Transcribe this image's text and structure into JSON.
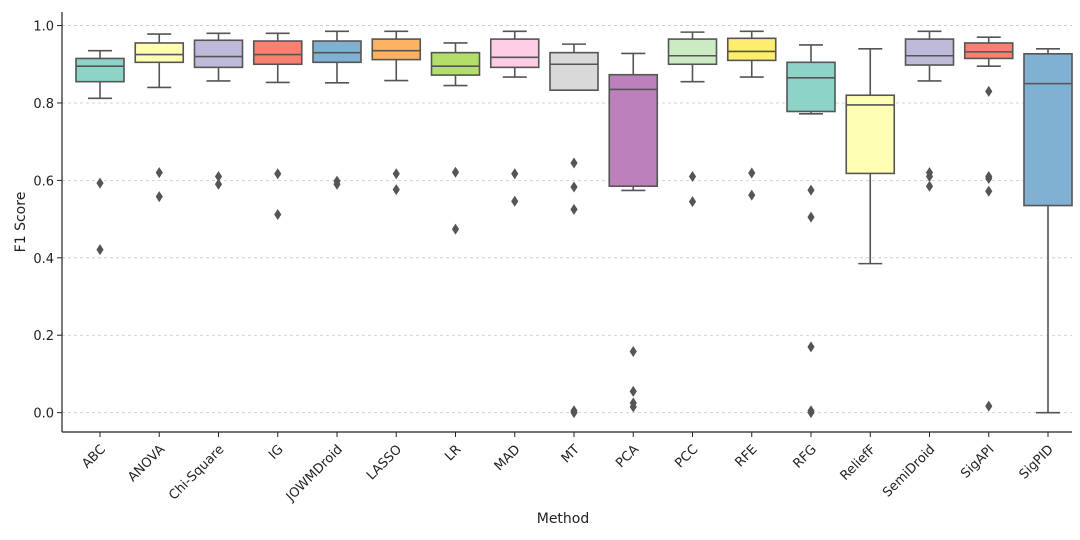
{
  "chart_data": {
    "type": "box",
    "title": "",
    "xlabel": "Method",
    "ylabel": "F1 Score",
    "ylim": [
      -0.05,
      1.035
    ],
    "yticks": [
      0.0,
      0.2,
      0.4,
      0.6,
      0.8,
      1.0
    ],
    "ytick_labels": [
      "0.0",
      "0.2",
      "0.4",
      "0.6",
      "0.8",
      "1.0"
    ],
    "grid": "horizontal-dashed",
    "categories": [
      "ABC",
      "ANOVA",
      "Chi-Square",
      "IG",
      "JOWMDroid",
      "LASSO",
      "LR",
      "MAD",
      "MT",
      "PCA",
      "PCC",
      "RFE",
      "RFG",
      "ReliefF",
      "SemiDroid",
      "SigAPI",
      "SigPID"
    ],
    "series": [
      {
        "name": "ABC",
        "color": "#8dd3c7",
        "whisker_low": 0.812,
        "q1": 0.855,
        "median": 0.895,
        "q3": 0.915,
        "whisker_high": 0.935,
        "outliers": [
          0.593,
          0.421
        ]
      },
      {
        "name": "ANOVA",
        "color": "#ffffb3",
        "whisker_low": 0.84,
        "q1": 0.905,
        "median": 0.925,
        "q3": 0.955,
        "whisker_high": 0.978,
        "outliers": [
          0.62,
          0.558
        ]
      },
      {
        "name": "Chi-Square",
        "color": "#bebada",
        "whisker_low": 0.857,
        "q1": 0.892,
        "median": 0.92,
        "q3": 0.962,
        "whisker_high": 0.98,
        "outliers": [
          0.61,
          0.59
        ]
      },
      {
        "name": "IG",
        "color": "#fb8072",
        "whisker_low": 0.853,
        "q1": 0.9,
        "median": 0.925,
        "q3": 0.96,
        "whisker_high": 0.98,
        "outliers": [
          0.617,
          0.512
        ]
      },
      {
        "name": "JOWMDroid",
        "color": "#80b1d3",
        "whisker_low": 0.852,
        "q1": 0.905,
        "median": 0.93,
        "q3": 0.96,
        "whisker_high": 0.985,
        "outliers": [
          0.598,
          0.59
        ]
      },
      {
        "name": "LASSO",
        "color": "#fdb462",
        "whisker_low": 0.858,
        "q1": 0.912,
        "median": 0.935,
        "q3": 0.965,
        "whisker_high": 0.985,
        "outliers": [
          0.617,
          0.576
        ]
      },
      {
        "name": "LR",
        "color": "#b3de69",
        "whisker_low": 0.845,
        "q1": 0.872,
        "median": 0.895,
        "q3": 0.93,
        "whisker_high": 0.955,
        "outliers": [
          0.621,
          0.474
        ]
      },
      {
        "name": "MAD",
        "color": "#fccde5",
        "whisker_low": 0.867,
        "q1": 0.892,
        "median": 0.918,
        "q3": 0.965,
        "whisker_high": 0.985,
        "outliers": [
          0.617,
          0.546
        ]
      },
      {
        "name": "MT",
        "color": "#d9d9d9",
        "whisker_low": 0.833,
        "q1": 0.833,
        "median": 0.9,
        "q3": 0.93,
        "whisker_high": 0.952,
        "outliers": [
          0.645,
          0.583,
          0.525,
          0.005,
          0.0
        ]
      },
      {
        "name": "PCA",
        "color": "#bc80bd",
        "whisker_low": 0.574,
        "q1": 0.585,
        "median": 0.835,
        "q3": 0.873,
        "whisker_high": 0.928,
        "outliers": [
          0.158,
          0.055,
          0.025,
          0.015
        ]
      },
      {
        "name": "PCC",
        "color": "#ccebc5",
        "whisker_low": 0.855,
        "q1": 0.9,
        "median": 0.922,
        "q3": 0.965,
        "whisker_high": 0.983,
        "outliers": [
          0.61,
          0.545
        ]
      },
      {
        "name": "RFE",
        "color": "#ffed6f",
        "whisker_low": 0.867,
        "q1": 0.91,
        "median": 0.933,
        "q3": 0.967,
        "whisker_high": 0.985,
        "outliers": [
          0.619,
          0.562
        ]
      },
      {
        "name": "RFG",
        "color": "#8dd3c7",
        "whisker_low": 0.772,
        "q1": 0.778,
        "median": 0.865,
        "q3": 0.905,
        "whisker_high": 0.95,
        "outliers": [
          0.575,
          0.505,
          0.17,
          0.005,
          0.0
        ]
      },
      {
        "name": "ReliefF",
        "color": "#ffffb3",
        "whisker_low": 0.385,
        "q1": 0.618,
        "median": 0.795,
        "q3": 0.82,
        "whisker_high": 0.94,
        "outliers": []
      },
      {
        "name": "SemiDroid",
        "color": "#bebada",
        "whisker_low": 0.857,
        "q1": 0.898,
        "median": 0.922,
        "q3": 0.965,
        "whisker_high": 0.985,
        "outliers": [
          0.62,
          0.61,
          0.585
        ]
      },
      {
        "name": "SigAPI",
        "color": "#fb8072",
        "whisker_low": 0.895,
        "q1": 0.915,
        "median": 0.932,
        "q3": 0.955,
        "whisker_high": 0.97,
        "outliers": [
          0.83,
          0.61,
          0.605,
          0.572,
          0.017
        ]
      },
      {
        "name": "SigPID",
        "color": "#80b1d3",
        "whisker_low": 0.0,
        "q1": 0.535,
        "median": 0.85,
        "q3": 0.927,
        "whisker_high": 0.94,
        "outliers": []
      }
    ]
  }
}
